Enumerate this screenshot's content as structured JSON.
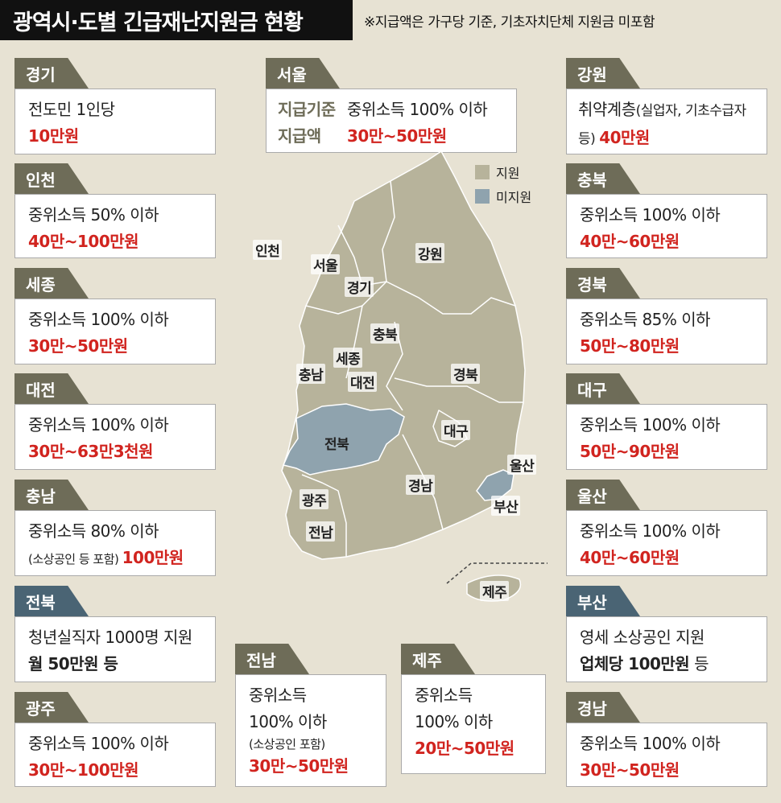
{
  "title": "광역시·도별 긴급재난지원금 현황",
  "note": "※지급액은 가구당 기준, 기초자치단체 지원금 미포함",
  "legend": {
    "support": "지원",
    "no_support": "미지원",
    "support_color": "#b7b39b",
    "no_support_color": "#8fa3ae"
  },
  "cards": {
    "gyeonggi": {
      "name": "경기",
      "line1": "전도민 1인당",
      "amount": "10만원"
    },
    "seoul": {
      "name": "서울",
      "label1": "지급기준",
      "criteria": "중위소득 100% 이하",
      "label2": "지급액",
      "amount": "30만~50만원"
    },
    "gangwon": {
      "name": "강원",
      "line1_a": "취약계층",
      "line1_b": "(실업자, 기초수급자",
      "line2_a": "등) ",
      "amount": "40만원"
    },
    "incheon": {
      "name": "인천",
      "line1": "중위소득 50% 이하",
      "amount": "40만~100만원"
    },
    "chungbuk": {
      "name": "충북",
      "line1": "중위소득 100% 이하",
      "amount": "40만~60만원"
    },
    "sejong": {
      "name": "세종",
      "line1": "중위소득 100% 이하",
      "amount": "30만~50만원"
    },
    "gyeongbuk": {
      "name": "경북",
      "line1": "중위소득 85% 이하",
      "amount": "50만~80만원"
    },
    "daejeon": {
      "name": "대전",
      "line1": "중위소득 100% 이하",
      "amount": "30만~63만3천원"
    },
    "daegu": {
      "name": "대구",
      "line1": "중위소득 100% 이하",
      "amount": "50만~90만원"
    },
    "chungnam": {
      "name": "충남",
      "line1": "중위소득 80% 이하",
      "note": "(소상공인 등 포함) ",
      "amount": "100만원"
    },
    "ulsan": {
      "name": "울산",
      "line1": "중위소득 100% 이하",
      "amount": "40만~60만원"
    },
    "jeonbuk": {
      "name": "전북",
      "line1": "청년실직자 1000명 지원",
      "amount": "월 50만원 등"
    },
    "busan": {
      "name": "부산",
      "line1": "영세 소상공인 지원",
      "amount_bold": "업체당 100만원",
      "amount_tail": " 등"
    },
    "jeonnam": {
      "name": "전남",
      "line1": "중위소득",
      "line2": "100% 이하",
      "note": "(소상공인 포함)",
      "amount": "30만~50만원"
    },
    "jeju": {
      "name": "제주",
      "line1": "중위소득",
      "line2": "100% 이하",
      "amount": "20만~50만원"
    },
    "gwangju": {
      "name": "광주",
      "line1": "중위소득 100% 이하",
      "amount": "30만~100만원"
    },
    "gyeongnam": {
      "name": "경남",
      "line1": "중위소득 100% 이하",
      "amount": "30만~50만원"
    }
  },
  "map_labels": {
    "incheon": "인천",
    "seoul": "서울",
    "gyeonggi": "경기",
    "gangwon": "강원",
    "chungbuk": "충북",
    "sejong": "세종",
    "chungnam": "충남",
    "daejeon": "대전",
    "gyeongbuk": "경북",
    "daegu": "대구",
    "jeonbuk": "전북",
    "ulsan": "울산",
    "gyeongnam": "경남",
    "busan": "부산",
    "gwangju": "광주",
    "jeonnam": "전남",
    "jeju": "제주"
  }
}
